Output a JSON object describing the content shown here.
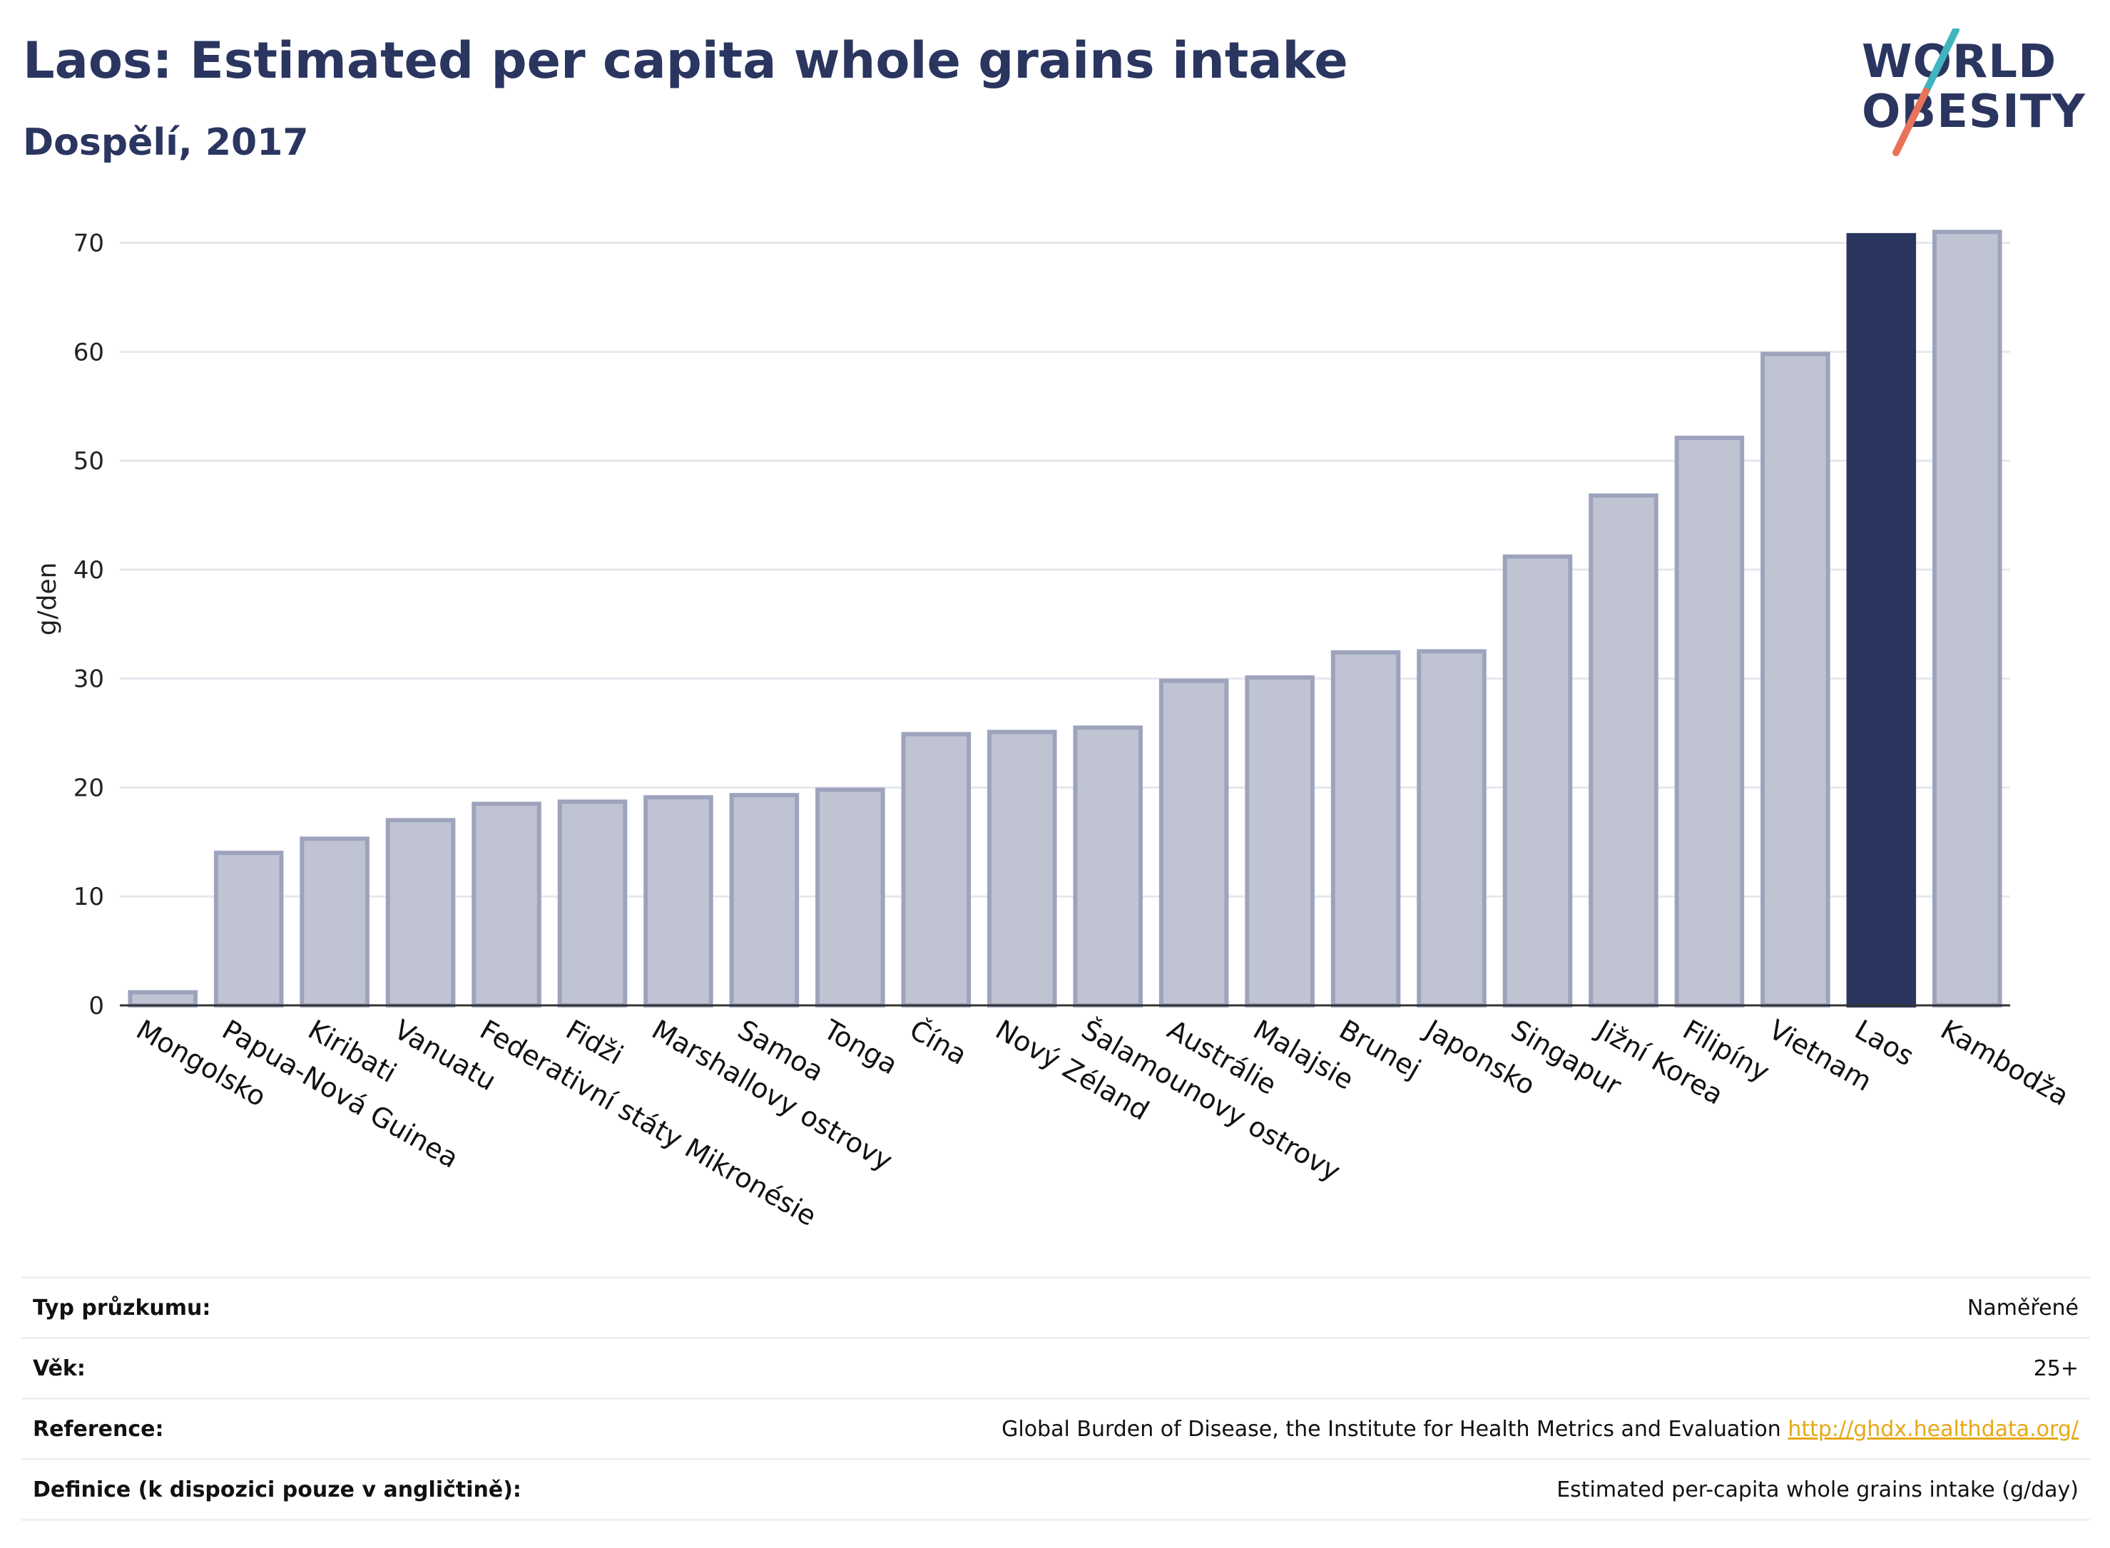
{
  "header": {
    "title": "Laos: Estimated per capita whole grains intake",
    "subtitle": "Dospělí, 2017"
  },
  "logo": {
    "line1": "WORLD",
    "line2": "OBESITY"
  },
  "colors": {
    "highlight": "#2a3560",
    "bar_fill": "#c0c4d2",
    "bar_stroke": "#9ea3bd",
    "grid": "#e6e8ee",
    "logo_teal": "#3fb5c0",
    "logo_coral": "#e8735a"
  },
  "chart_data": {
    "type": "bar",
    "ylabel": "g/den",
    "ylim": [
      0,
      72
    ],
    "yticks": [
      0,
      10,
      20,
      30,
      40,
      50,
      60,
      70
    ],
    "highlight": "Laos",
    "grid": true,
    "categories": [
      "Mongolsko",
      "Papua-Nová Guinea",
      "Kiribati",
      "Vanuatu",
      "Federativní státy Mikronésie",
      "Fidži",
      "Marshallovy ostrovy",
      "Samoa",
      "Tonga",
      "Čína",
      "Nový Zéland",
      "Šalamounovy ostrovy",
      "Austrálie",
      "Malajsie",
      "Brunej",
      "Japonsko",
      "Singapur",
      "Jižní Korea",
      "Filipíny",
      "Vietnam",
      "Laos",
      "Kambodža"
    ],
    "values": [
      1.2,
      14.0,
      15.3,
      17.0,
      18.5,
      18.7,
      19.1,
      19.3,
      19.8,
      24.9,
      25.1,
      25.5,
      29.8,
      30.1,
      32.4,
      32.5,
      41.2,
      46.8,
      52.1,
      59.8,
      70.7,
      71.0
    ]
  },
  "info": {
    "rows": [
      {
        "label": "Typ průzkumu:",
        "value": "Naměřené"
      },
      {
        "label": "Věk:",
        "value": "25+"
      },
      {
        "label": "Reference:",
        "value": "Global Burden of Disease, the Institute for Health Metrics and Evaluation",
        "link": "http://ghdx.healthdata.org/"
      },
      {
        "label": "Definice (k dispozici pouze v angličtině):",
        "value": "Estimated per-capita whole grains intake (g/day)"
      }
    ]
  }
}
